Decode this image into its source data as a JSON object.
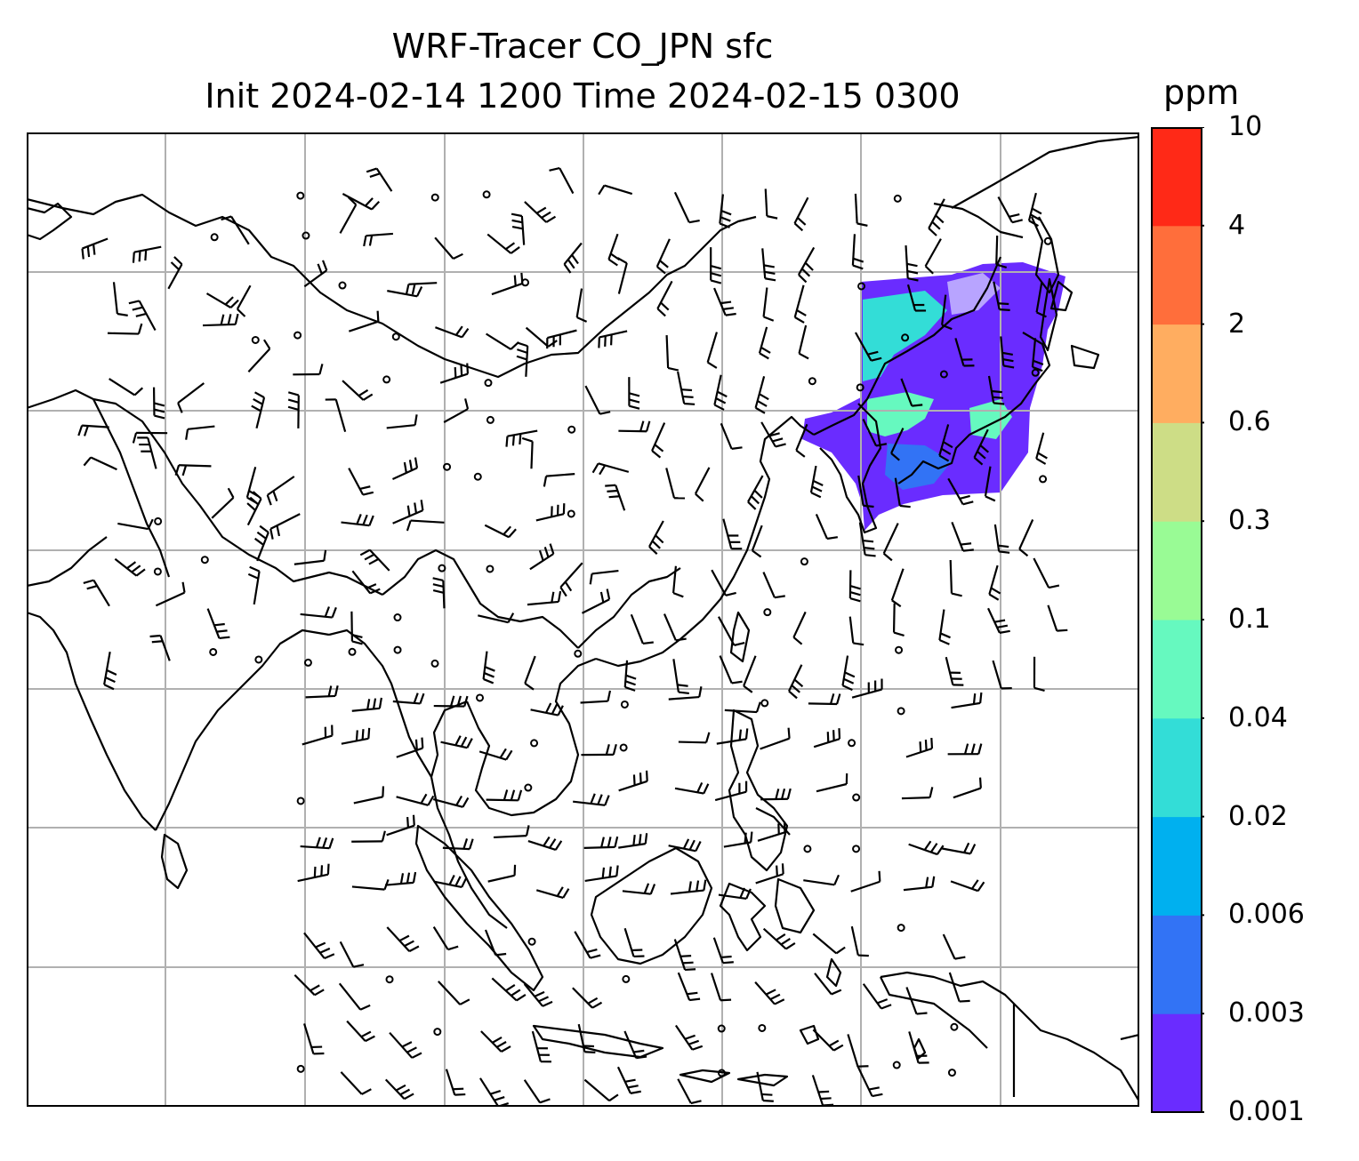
{
  "title": {
    "line1": "WRF-Tracer CO_JPN sfc",
    "line2": "Init 2024-02-14 1200 Time 2024-02-15 0300"
  },
  "colorbar": {
    "unit": "ppm",
    "levels": [
      "0.001",
      "0.003",
      "0.006",
      "0.02",
      "0.04",
      "0.1",
      "0.3",
      "0.6",
      "2",
      "4",
      "10"
    ],
    "colors": [
      "#6a2cff",
      "#3273f5",
      "#00b0ef",
      "#33ddd7",
      "#66f9bf",
      "#99fb95",
      "#cddd86",
      "#ffad60",
      "#ff6e3b",
      "#ff2917"
    ]
  },
  "map": {
    "frame_color": "#000000",
    "grid_color": "#b0b0b0",
    "coastline_color": "#000000",
    "tracer_colors": {
      "low": "#6a2cff",
      "mid": "#3273f5",
      "cyan": "#33ddd7",
      "green": "#66f9bf"
    },
    "wind_barb_color": "#000000",
    "extent": {
      "lon": [
        60,
        150
      ],
      "lat": [
        -15,
        60
      ]
    }
  }
}
